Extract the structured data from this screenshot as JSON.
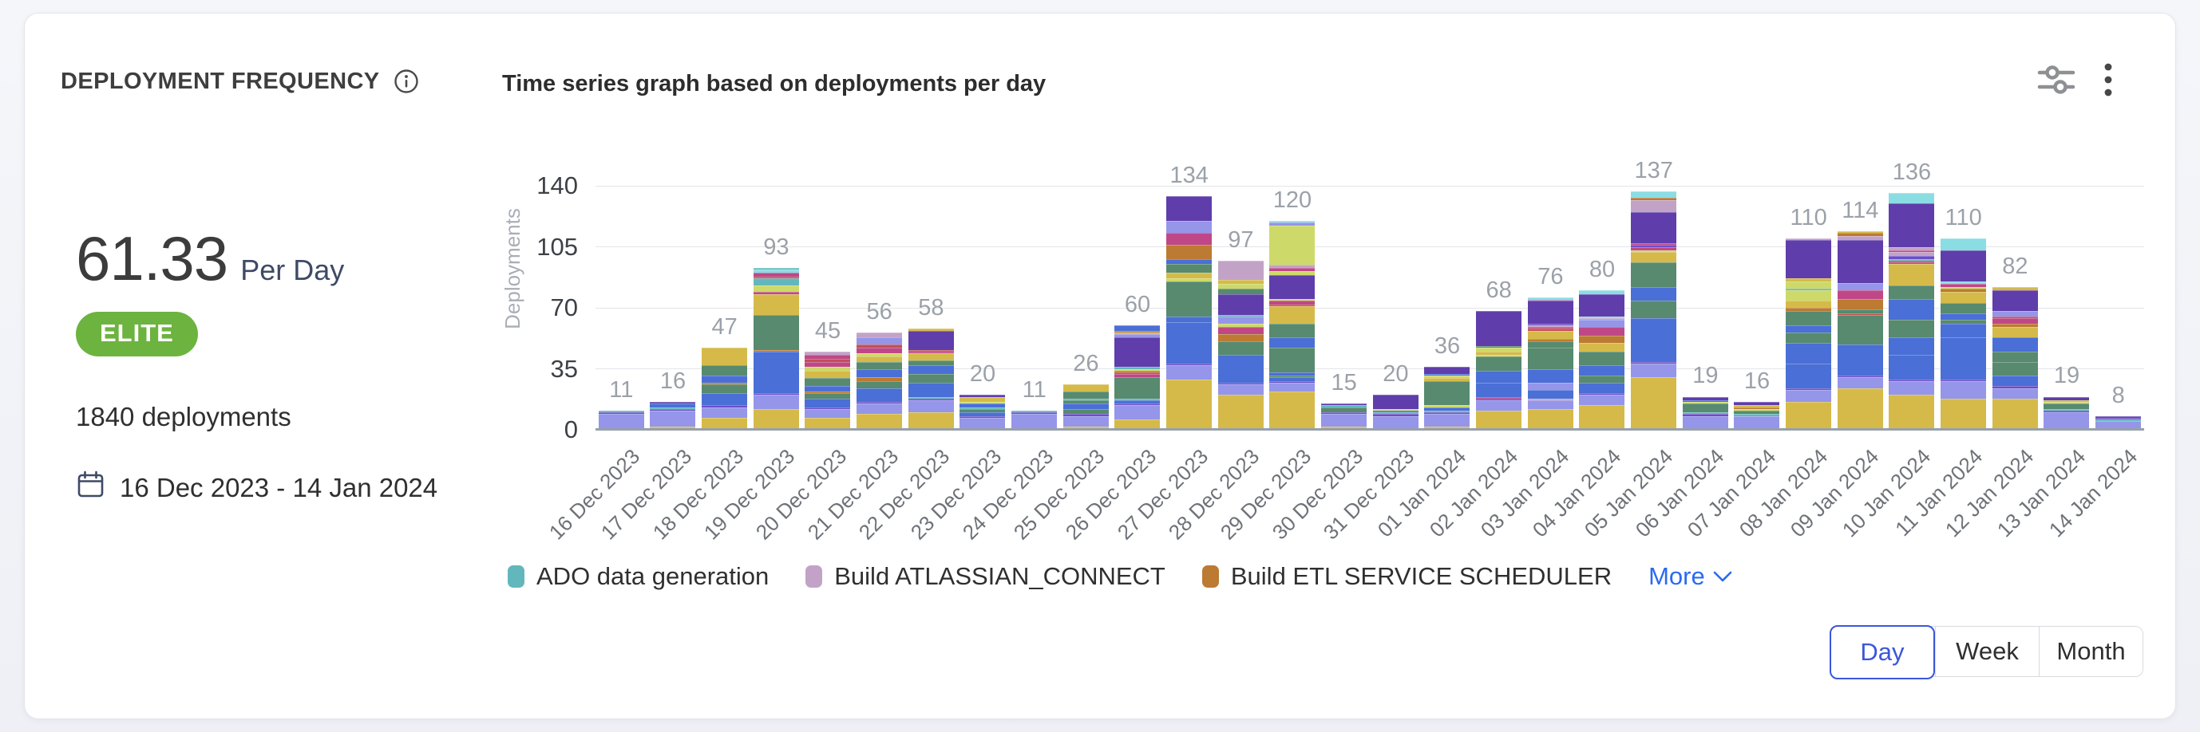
{
  "card": {
    "title": "DEPLOYMENT FREQUENCY",
    "subtitle": "Time series graph based on deployments per day"
  },
  "summary": {
    "rate_value": "61.33",
    "rate_unit": "Per Day",
    "badge": "ELITE",
    "badge_color": "#6db33f",
    "total_deployments": "1840 deployments",
    "date_range": "16 Dec 2023 - 14 Jan 2024"
  },
  "legend": {
    "items": [
      {
        "label": "ADO data generation",
        "color": "#62b7bc"
      },
      {
        "label": "Build ATLASSIAN_CONNECT",
        "color": "#c2a3c7"
      },
      {
        "label": "Build ETL SERVICE SCHEDULER",
        "color": "#bc7a32"
      }
    ],
    "more_label": "More",
    "more_color": "#2a6af0"
  },
  "controls": {
    "options": [
      "Day",
      "Week",
      "Month"
    ],
    "selected": "Day",
    "selected_color": "#3b57d8"
  },
  "chart_data": {
    "type": "bar",
    "stacked": true,
    "title": "Time series graph based on deployments per day",
    "ylabel": "Deployments",
    "xlabel": "",
    "ylim": [
      0,
      140
    ],
    "yticks": [
      0,
      35,
      70,
      105,
      140
    ],
    "grid": true,
    "legend_position": "bottom",
    "categories": [
      "16 Dec 2023",
      "17 Dec 2023",
      "18 Dec 2023",
      "19 Dec 2023",
      "20 Dec 2023",
      "21 Dec 2023",
      "22 Dec 2023",
      "23 Dec 2023",
      "24 Dec 2023",
      "25 Dec 2023",
      "26 Dec 2023",
      "27 Dec 2023",
      "28 Dec 2023",
      "29 Dec 2023",
      "30 Dec 2023",
      "31 Dec 2023",
      "01 Jan 2024",
      "02 Jan 2024",
      "03 Jan 2024",
      "04 Jan 2024",
      "05 Jan 2024",
      "06 Jan 2024",
      "07 Jan 2024",
      "08 Jan 2024",
      "09 Jan 2024",
      "10 Jan 2024",
      "11 Jan 2024",
      "12 Jan 2024",
      "13 Jan 2024",
      "14 Jan 2024"
    ],
    "totals": [
      11,
      16,
      47,
      93,
      45,
      56,
      58,
      20,
      11,
      26,
      60,
      134,
      97,
      120,
      15,
      20,
      36,
      68,
      76,
      80,
      137,
      19,
      16,
      110,
      114,
      136,
      110,
      82,
      19,
      8
    ],
    "palette": [
      "#d5ba4a",
      "#9595e9",
      "#4a6fd6",
      "#578a6e",
      "#5f3dab",
      "#c04787",
      "#bc7a32",
      "#62b7bc",
      "#c2a3c7",
      "#cdd968",
      "#8adde3",
      "#c05252",
      "#6b4fc8"
    ],
    "segments": [
      [
        [
          0,
          1
        ],
        [
          1,
          8
        ],
        [
          12,
          1
        ],
        [
          7,
          1
        ]
      ],
      [
        [
          0,
          2
        ],
        [
          1,
          9
        ],
        [
          12,
          1
        ],
        [
          7,
          1
        ],
        [
          2,
          2
        ],
        [
          4,
          1
        ]
      ],
      [
        [
          0,
          7
        ],
        [
          1,
          6
        ],
        [
          12,
          1
        ],
        [
          2,
          7
        ],
        [
          3,
          5
        ],
        [
          6,
          1
        ],
        [
          2,
          4
        ],
        [
          3,
          6
        ],
        [
          0,
          10
        ]
      ],
      [
        [
          0,
          12
        ],
        [
          1,
          8
        ],
        [
          12,
          1
        ],
        [
          2,
          24
        ],
        [
          6,
          1
        ],
        [
          3,
          20
        ],
        [
          0,
          12
        ],
        [
          5,
          1
        ],
        [
          9,
          4
        ],
        [
          7,
          4
        ],
        [
          11,
          1
        ],
        [
          5,
          2
        ],
        [
          10,
          2
        ],
        [
          7,
          1
        ]
      ],
      [
        [
          0,
          7
        ],
        [
          1,
          5
        ],
        [
          12,
          1
        ],
        [
          2,
          5
        ],
        [
          3,
          3
        ],
        [
          6,
          1
        ],
        [
          2,
          3
        ],
        [
          3,
          5
        ],
        [
          0,
          4
        ],
        [
          9,
          2
        ],
        [
          5,
          3
        ],
        [
          11,
          2
        ],
        [
          5,
          2
        ],
        [
          8,
          2
        ]
      ],
      [
        [
          0,
          9
        ],
        [
          1,
          6
        ],
        [
          12,
          1
        ],
        [
          2,
          8
        ],
        [
          3,
          4
        ],
        [
          6,
          2
        ],
        [
          2,
          5
        ],
        [
          3,
          4
        ],
        [
          0,
          3
        ],
        [
          9,
          2
        ],
        [
          5,
          3
        ],
        [
          11,
          2
        ],
        [
          1,
          4
        ],
        [
          8,
          3
        ]
      ],
      [
        [
          0,
          10
        ],
        [
          1,
          7
        ],
        [
          12,
          1
        ],
        [
          7,
          1
        ],
        [
          2,
          8
        ],
        [
          3,
          5
        ],
        [
          2,
          5
        ],
        [
          3,
          3
        ],
        [
          0,
          4
        ],
        [
          5,
          1
        ],
        [
          11,
          1
        ],
        [
          4,
          11
        ],
        [
          0,
          1
        ]
      ],
      [
        [
          0,
          1
        ],
        [
          1,
          6
        ],
        [
          12,
          1
        ],
        [
          2,
          2
        ],
        [
          3,
          2
        ],
        [
          7,
          1
        ],
        [
          2,
          2
        ],
        [
          9,
          1
        ],
        [
          0,
          3
        ],
        [
          4,
          1
        ]
      ],
      [
        [
          0,
          1
        ],
        [
          1,
          8
        ],
        [
          12,
          1
        ],
        [
          7,
          1
        ]
      ],
      [
        [
          0,
          2
        ],
        [
          1,
          6
        ],
        [
          12,
          1
        ],
        [
          3,
          3
        ],
        [
          2,
          3
        ],
        [
          3,
          2
        ],
        [
          7,
          1
        ],
        [
          3,
          4
        ],
        [
          0,
          4
        ]
      ],
      [
        [
          0,
          6
        ],
        [
          1,
          8
        ],
        [
          12,
          1
        ],
        [
          2,
          2
        ],
        [
          7,
          1
        ],
        [
          3,
          12
        ],
        [
          5,
          2
        ],
        [
          11,
          1
        ],
        [
          6,
          1
        ],
        [
          9,
          1
        ],
        [
          7,
          1
        ],
        [
          4,
          17
        ],
        [
          1,
          2
        ],
        [
          0,
          1
        ],
        [
          6,
          1
        ],
        [
          2,
          3
        ]
      ],
      [
        [
          0,
          29
        ],
        [
          1,
          8
        ],
        [
          12,
          1
        ],
        [
          2,
          24
        ],
        [
          2,
          3
        ],
        [
          3,
          20
        ],
        [
          9,
          2
        ],
        [
          0,
          3
        ],
        [
          3,
          5
        ],
        [
          2,
          3
        ],
        [
          6,
          8
        ],
        [
          5,
          7
        ],
        [
          1,
          7
        ],
        [
          4,
          14
        ]
      ],
      [
        [
          0,
          20
        ],
        [
          1,
          6
        ],
        [
          12,
          1
        ],
        [
          2,
          16
        ],
        [
          3,
          8
        ],
        [
          6,
          4
        ],
        [
          5,
          4
        ],
        [
          9,
          2
        ],
        [
          1,
          4
        ],
        [
          7,
          1
        ],
        [
          4,
          12
        ],
        [
          3,
          3
        ],
        [
          9,
          3
        ],
        [
          0,
          2
        ],
        [
          8,
          11
        ]
      ],
      [
        [
          0,
          22
        ],
        [
          1,
          5
        ],
        [
          12,
          1
        ],
        [
          2,
          2
        ],
        [
          3,
          1
        ],
        [
          2,
          2
        ],
        [
          3,
          14
        ],
        [
          2,
          6
        ],
        [
          3,
          8
        ],
        [
          0,
          10
        ],
        [
          11,
          1
        ],
        [
          5,
          2
        ],
        [
          9,
          1
        ],
        [
          4,
          14
        ],
        [
          9,
          2
        ],
        [
          5,
          2
        ],
        [
          8,
          2
        ],
        [
          9,
          22
        ],
        [
          1,
          2
        ],
        [
          10,
          1
        ]
      ],
      [
        [
          0,
          2
        ],
        [
          1,
          7
        ],
        [
          12,
          1
        ],
        [
          3,
          3
        ],
        [
          7,
          1
        ],
        [
          4,
          1
        ]
      ],
      [
        [
          0,
          1
        ],
        [
          1,
          7
        ],
        [
          12,
          1
        ],
        [
          7,
          1
        ],
        [
          2,
          1
        ],
        [
          9,
          1
        ],
        [
          4,
          8
        ]
      ],
      [
        [
          0,
          2
        ],
        [
          1,
          7
        ],
        [
          12,
          1
        ],
        [
          7,
          1
        ],
        [
          2,
          2
        ],
        [
          9,
          1
        ],
        [
          3,
          14
        ],
        [
          0,
          2
        ],
        [
          9,
          1
        ],
        [
          2,
          1
        ],
        [
          4,
          4
        ]
      ],
      [
        [
          0,
          11
        ],
        [
          1,
          6
        ],
        [
          12,
          1
        ],
        [
          5,
          1
        ],
        [
          2,
          8
        ],
        [
          2,
          7
        ],
        [
          3,
          8
        ],
        [
          9,
          1
        ],
        [
          0,
          2
        ],
        [
          9,
          2
        ],
        [
          3,
          1
        ],
        [
          4,
          20
        ]
      ],
      [
        [
          0,
          12
        ],
        [
          1,
          5
        ],
        [
          8,
          1
        ],
        [
          2,
          5
        ],
        [
          1,
          4
        ],
        [
          2,
          8
        ],
        [
          3,
          12
        ],
        [
          3,
          4
        ],
        [
          6,
          1
        ],
        [
          0,
          5
        ],
        [
          11,
          1
        ],
        [
          5,
          1
        ],
        [
          8,
          1
        ],
        [
          12,
          1
        ],
        [
          4,
          13
        ],
        [
          8,
          1
        ],
        [
          10,
          1
        ]
      ],
      [
        [
          0,
          14
        ],
        [
          1,
          6
        ],
        [
          12,
          1
        ],
        [
          2,
          6
        ],
        [
          3,
          4
        ],
        [
          2,
          6
        ],
        [
          3,
          8
        ],
        [
          0,
          5
        ],
        [
          6,
          4
        ],
        [
          5,
          5
        ],
        [
          1,
          4
        ],
        [
          8,
          1
        ],
        [
          10,
          1
        ],
        [
          4,
          13
        ],
        [
          10,
          2
        ]
      ],
      [
        [
          0,
          30
        ],
        [
          1,
          8
        ],
        [
          12,
          1
        ],
        [
          2,
          25
        ],
        [
          3,
          10
        ],
        [
          2,
          8
        ],
        [
          3,
          14
        ],
        [
          0,
          6
        ],
        [
          9,
          1
        ],
        [
          5,
          2
        ],
        [
          12,
          1
        ],
        [
          5,
          1
        ],
        [
          4,
          18
        ],
        [
          8,
          7
        ],
        [
          6,
          1
        ],
        [
          10,
          4
        ]
      ],
      [
        [
          0,
          1
        ],
        [
          1,
          7
        ],
        [
          12,
          1
        ],
        [
          7,
          1
        ],
        [
          3,
          5
        ],
        [
          9,
          1
        ],
        [
          2,
          1
        ],
        [
          4,
          2
        ]
      ],
      [
        [
          0,
          1
        ],
        [
          1,
          7
        ],
        [
          7,
          1
        ],
        [
          3,
          2
        ],
        [
          9,
          1
        ],
        [
          6,
          1
        ],
        [
          0,
          1
        ],
        [
          4,
          2
        ]
      ],
      [
        [
          0,
          16
        ],
        [
          1,
          7
        ],
        [
          12,
          1
        ],
        [
          2,
          14
        ],
        [
          2,
          12
        ],
        [
          3,
          6
        ],
        [
          2,
          4
        ],
        [
          3,
          8
        ],
        [
          6,
          2
        ],
        [
          0,
          4
        ],
        [
          9,
          6
        ],
        [
          7,
          1
        ],
        [
          9,
          4
        ],
        [
          0,
          2
        ],
        [
          4,
          22
        ],
        [
          8,
          1
        ]
      ],
      [
        [
          0,
          24
        ],
        [
          1,
          6
        ],
        [
          12,
          1
        ],
        [
          2,
          18
        ],
        [
          3,
          17
        ],
        [
          11,
          1
        ],
        [
          3,
          2
        ],
        [
          6,
          6
        ],
        [
          5,
          5
        ],
        [
          1,
          4
        ],
        [
          4,
          25
        ],
        [
          8,
          2
        ],
        [
          6,
          2
        ],
        [
          0,
          1
        ]
      ],
      [
        [
          0,
          20
        ],
        [
          1,
          8
        ],
        [
          12,
          1
        ],
        [
          2,
          14
        ],
        [
          2,
          10
        ],
        [
          3,
          10
        ],
        [
          2,
          12
        ],
        [
          3,
          8
        ],
        [
          0,
          12
        ],
        [
          5,
          1
        ],
        [
          11,
          1
        ],
        [
          7,
          1
        ],
        [
          12,
          2
        ],
        [
          8,
          2
        ],
        [
          5,
          1
        ],
        [
          8,
          2
        ],
        [
          4,
          25
        ],
        [
          10,
          6
        ]
      ],
      [
        [
          0,
          18
        ],
        [
          1,
          10
        ],
        [
          12,
          1
        ],
        [
          2,
          24
        ],
        [
          2,
          8
        ],
        [
          3,
          2
        ],
        [
          2,
          4
        ],
        [
          3,
          6
        ],
        [
          0,
          6
        ],
        [
          6,
          2
        ],
        [
          9,
          1
        ],
        [
          5,
          2
        ],
        [
          10,
          1
        ],
        [
          4,
          18
        ],
        [
          10,
          7
        ]
      ],
      [
        [
          0,
          18
        ],
        [
          1,
          6
        ],
        [
          12,
          1
        ],
        [
          2,
          6
        ],
        [
          3,
          8
        ],
        [
          3,
          6
        ],
        [
          2,
          8
        ],
        [
          0,
          6
        ],
        [
          6,
          2
        ],
        [
          5,
          3
        ],
        [
          11,
          1
        ],
        [
          1,
          3
        ],
        [
          4,
          12
        ],
        [
          0,
          2
        ]
      ],
      [
        [
          0,
          1
        ],
        [
          1,
          9
        ],
        [
          12,
          1
        ],
        [
          7,
          1
        ],
        [
          3,
          3
        ],
        [
          9,
          1
        ],
        [
          0,
          1
        ],
        [
          4,
          2
        ]
      ],
      [
        [
          1,
          5
        ],
        [
          7,
          1
        ],
        [
          12,
          1
        ],
        [
          4,
          1
        ]
      ]
    ]
  }
}
